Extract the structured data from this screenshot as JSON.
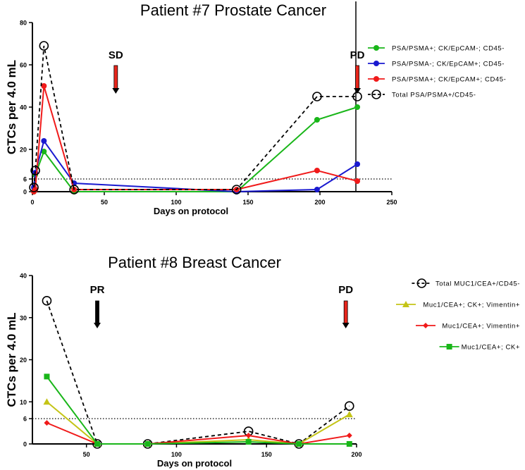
{
  "chart_data": [
    {
      "type": "line",
      "title": "Patient #7 Prostate Cancer",
      "xlabel": "Days on protocol",
      "ylabel": "CTCs per 4.0 mL",
      "xlim": [
        0,
        250
      ],
      "ylim": [
        0,
        80
      ],
      "xticks": [
        0,
        50,
        100,
        150,
        200,
        250
      ],
      "yticks": [
        0,
        6,
        20,
        40,
        60,
        80
      ],
      "threshold": 6,
      "legend_position": "top-right",
      "annotations": [
        {
          "label": "SD",
          "x": 58,
          "color": "#e8261c"
        },
        {
          "label": "PD",
          "x": 226,
          "color": "#e8261c"
        }
      ],
      "x": [
        1,
        2,
        8,
        29,
        142,
        198,
        226
      ],
      "series": [
        {
          "name": "PSA/PSMA+; CK/EpCAM-; CD45-",
          "color": "#19b619",
          "marker": "dot",
          "dash": false,
          "values": [
            0,
            8,
            19,
            0,
            0,
            34,
            40
          ]
        },
        {
          "name": "PSA/PSMA-; CK/EpCAM+; CD45-",
          "color": "#1a1ad0",
          "marker": "dot",
          "dash": false,
          "values": [
            2,
            9,
            24,
            4,
            0,
            1,
            13
          ]
        },
        {
          "name": "PSA/PSMA+; CK/EpCAM+; CD45-",
          "color": "#f01a1a",
          "marker": "dot",
          "dash": false,
          "values": [
            0,
            1,
            50,
            1,
            1,
            10,
            5
          ]
        },
        {
          "name": "Total PSA/PSMA+/CD45-",
          "color": "#000000",
          "marker": "circle",
          "dash": true,
          "values": [
            2,
            10,
            69,
            1,
            1,
            45,
            45
          ]
        }
      ]
    },
    {
      "type": "line",
      "title": "Patient #8 Breast Cancer",
      "xlabel": "Days on protocol",
      "ylabel": "CTCs per 4.0 mL",
      "xlim": [
        20,
        200
      ],
      "ylim": [
        0,
        40
      ],
      "xticks": [
        50,
        100,
        150,
        200
      ],
      "yticks": [
        0,
        6,
        10,
        20,
        30,
        40
      ],
      "threshold": 6,
      "legend_position": "top-right",
      "annotations": [
        {
          "label": "PR",
          "x": 56,
          "color": "#000000"
        },
        {
          "label": "PD",
          "x": 194,
          "color": "#e8261c"
        }
      ],
      "x": [
        28,
        56,
        84,
        140,
        168,
        196
      ],
      "series": [
        {
          "name": "Total MUC1/CEA+/CD45-",
          "color": "#000000",
          "marker": "circle",
          "dash": true,
          "values": [
            34,
            0,
            0,
            3,
            0,
            9
          ]
        },
        {
          "name": "Muc1/CEA+; CK+; Vimentin+",
          "color": "#c4c417",
          "marker": "triangle",
          "dash": false,
          "values": [
            10,
            0,
            0,
            1,
            0,
            7
          ]
        },
        {
          "name": "Muc1/CEA+; Vimentin+",
          "color": "#f01a1a",
          "marker": "diamond",
          "dash": false,
          "values": [
            5,
            0,
            0,
            2,
            0,
            2
          ]
        },
        {
          "name": "Muc1/CEA+; CK+",
          "color": "#19b619",
          "marker": "square",
          "dash": false,
          "values": [
            16,
            0,
            0,
            0.5,
            0,
            0
          ]
        }
      ]
    }
  ]
}
